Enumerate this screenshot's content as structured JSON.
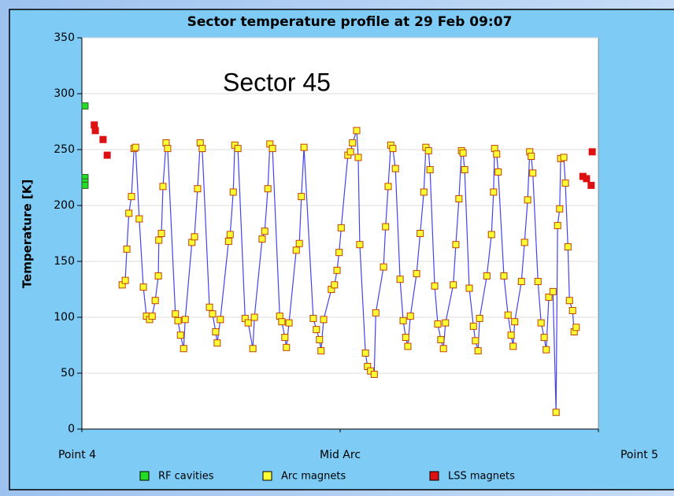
{
  "chart_data": {
    "type": "scatter",
    "title": "Sector temperature profile at 29 Feb 09:07",
    "annotation": "Sector 45",
    "ylabel": "Temperature [K]",
    "ylim": [
      0,
      350
    ],
    "yticks": [
      0,
      50,
      100,
      150,
      200,
      250,
      300,
      350
    ],
    "xlim": [
      0,
      100
    ],
    "xticks": [
      {
        "value": 0,
        "label": "Point 4"
      },
      {
        "value": 50,
        "label": "Mid Arc"
      },
      {
        "value": 100,
        "label": "Point 5"
      }
    ],
    "grid": true,
    "legend": "bottom",
    "series": [
      {
        "name": "RF cavities",
        "color": "#22dd22",
        "edgecolor": "#306030",
        "line": false,
        "x": [
          0.6,
          0.6,
          0.6,
          0.6
        ],
        "values": [
          289,
          225,
          221,
          218
        ]
      },
      {
        "name": "Arc magnets",
        "color": "#ffff33",
        "edgecolor": "#c04000",
        "line": true,
        "linecolor": "#4444ee",
        "x": [
          7.8,
          8.4,
          8.7,
          9.1,
          9.6,
          10.1,
          10.4,
          11.1,
          11.9,
          12.5,
          13.1,
          13.6,
          14.2,
          14.8,
          14.9,
          15.4,
          15.7,
          16.3,
          16.6,
          18.1,
          18.6,
          19.1,
          19.7,
          20.0,
          21.3,
          21.8,
          22.4,
          22.9,
          23.3,
          24.7,
          25.3,
          25.9,
          26.2,
          26.8,
          28.4,
          28.7,
          29.3,
          29.6,
          30.2,
          31.6,
          32.2,
          33.1,
          33.4,
          34.9,
          35.4,
          36.0,
          36.4,
          36.9,
          38.3,
          38.7,
          39.3,
          39.6,
          40.1,
          41.5,
          42.1,
          42.5,
          43.0,
          44.8,
          45.4,
          46.0,
          46.3,
          46.8,
          48.3,
          48.9,
          49.4,
          49.8,
          50.2,
          51.5,
          52.0,
          52.4,
          53.2,
          53.5,
          53.8,
          54.9,
          55.3,
          55.9,
          56.6,
          56.9,
          58.4,
          58.8,
          59.3,
          59.8,
          60.2,
          60.7,
          61.6,
          62.2,
          62.7,
          63.1,
          63.6,
          64.8,
          65.5,
          66.2,
          66.6,
          67.1,
          67.4,
          68.3,
          68.9,
          69.5,
          70.0,
          70.4,
          71.9,
          72.4,
          73.0,
          73.5,
          73.8,
          74.1,
          75.0,
          75.8,
          76.2,
          76.7,
          77.0,
          78.4,
          79.3,
          79.7,
          79.9,
          80.3,
          80.6,
          81.7,
          82.5,
          83.1,
          83.5,
          83.8,
          85.1,
          85.7,
          86.3,
          86.7,
          87.0,
          87.3,
          88.3,
          88.9,
          89.5,
          89.9,
          90.4,
          91.2,
          91.8,
          92.1,
          92.5,
          92.7,
          93.3,
          93.6,
          94.1,
          94.4,
          95.0,
          95.3,
          95.7
        ],
        "values": [
          129,
          133,
          161,
          193,
          208,
          251,
          252,
          188,
          127,
          101,
          98,
          101,
          115,
          137,
          169,
          175,
          217,
          256,
          251,
          103,
          97,
          84,
          72,
          98,
          167,
          172,
          215,
          256,
          251,
          109,
          103,
          87,
          77,
          98,
          168,
          174,
          212,
          254,
          251,
          99,
          95,
          72,
          100,
          170,
          177,
          215,
          255,
          251,
          101,
          96,
          82,
          73,
          95,
          160,
          166,
          208,
          252,
          99,
          89,
          80,
          70,
          98,
          125,
          129,
          142,
          158,
          180,
          245,
          248,
          256,
          267,
          243,
          165,
          68,
          56,
          52,
          49,
          104,
          145,
          181,
          217,
          254,
          251,
          233,
          134,
          97,
          82,
          74,
          101,
          139,
          175,
          212,
          252,
          249,
          232,
          128,
          94,
          80,
          72,
          95,
          129,
          165,
          206,
          249,
          247,
          232,
          126,
          92,
          79,
          70,
          99,
          137,
          174,
          212,
          251,
          246,
          230,
          137,
          102,
          84,
          74,
          96,
          132,
          167,
          205,
          248,
          244,
          229,
          132,
          95,
          82,
          71,
          118,
          123,
          15,
          182,
          197,
          242,
          243,
          220,
          163,
          115,
          106,
          87,
          91
        ]
      },
      {
        "name": "LSS magnets",
        "color": "#dd1111",
        "edgecolor": "#dd1111",
        "line": false,
        "x": [
          2.4,
          2.6,
          4.1,
          4.9,
          97.0,
          97.7,
          98.6,
          98.8
        ],
        "values": [
          272,
          267,
          259,
          245,
          226,
          224,
          218,
          248
        ]
      }
    ]
  }
}
